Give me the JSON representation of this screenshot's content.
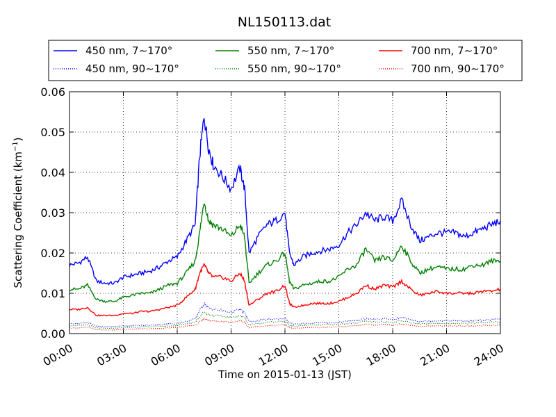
{
  "chart_data": {
    "type": "line",
    "title": "NL150113.dat",
    "xlabel": "Time on 2015-01-13 (JST)",
    "ylabel_main": "Scattering Coefficient (km",
    "ylabel_sup": "−1",
    "ylabel_close": ")",
    "xlim": [
      "00:00",
      "24:00"
    ],
    "ylim": [
      0,
      0.06
    ],
    "x_ticks": [
      "00:00",
      "03:00",
      "06:00",
      "09:00",
      "12:00",
      "15:00",
      "18:00",
      "21:00",
      "24:00"
    ],
    "y_ticks": [
      "0.00",
      "0.01",
      "0.02",
      "0.03",
      "0.04",
      "0.05",
      "0.06"
    ],
    "grid": true,
    "legend_position": "above-plot",
    "x_hours": [
      0,
      0.5,
      1,
      1.5,
      2,
      2.5,
      3,
      3.5,
      4,
      4.5,
      5,
      5.5,
      6,
      6.5,
      7,
      7.25,
      7.5,
      7.75,
      8,
      8.5,
      9,
      9.5,
      9.75,
      10,
      10.5,
      11,
      11.5,
      12,
      12.25,
      12.5,
      13,
      13.5,
      14,
      14.5,
      15,
      15.5,
      16,
      16.5,
      17,
      17.5,
      18,
      18.5,
      19,
      19.5,
      20,
      20.5,
      21,
      21.5,
      22,
      22.5,
      23,
      23.5,
      24
    ],
    "series": [
      {
        "name": "450 nm, 7∼170°",
        "color": "#0000ff",
        "style": "solid",
        "values": [
          0.017,
          0.0175,
          0.019,
          0.013,
          0.0125,
          0.0125,
          0.014,
          0.0145,
          0.015,
          0.0155,
          0.0165,
          0.018,
          0.019,
          0.023,
          0.027,
          0.044,
          0.054,
          0.046,
          0.042,
          0.039,
          0.036,
          0.041,
          0.036,
          0.02,
          0.024,
          0.027,
          0.028,
          0.03,
          0.02,
          0.017,
          0.019,
          0.02,
          0.0205,
          0.021,
          0.022,
          0.025,
          0.027,
          0.03,
          0.028,
          0.029,
          0.028,
          0.033,
          0.027,
          0.023,
          0.024,
          0.025,
          0.025,
          0.025,
          0.024,
          0.025,
          0.026,
          0.027,
          0.028
        ]
      },
      {
        "name": "550 nm, 7∼170°",
        "color": "#008000",
        "style": "solid",
        "values": [
          0.011,
          0.011,
          0.012,
          0.0085,
          0.008,
          0.008,
          0.009,
          0.0095,
          0.01,
          0.01,
          0.011,
          0.012,
          0.0125,
          0.015,
          0.018,
          0.025,
          0.033,
          0.028,
          0.027,
          0.026,
          0.024,
          0.027,
          0.024,
          0.0125,
          0.015,
          0.017,
          0.018,
          0.02,
          0.013,
          0.011,
          0.012,
          0.0125,
          0.013,
          0.013,
          0.014,
          0.016,
          0.017,
          0.021,
          0.018,
          0.019,
          0.018,
          0.022,
          0.018,
          0.015,
          0.016,
          0.0165,
          0.016,
          0.016,
          0.016,
          0.017,
          0.017,
          0.018,
          0.018
        ]
      },
      {
        "name": "700 nm, 7∼170°",
        "color": "#ff0000",
        "style": "solid",
        "values": [
          0.006,
          0.006,
          0.0065,
          0.0045,
          0.0045,
          0.0045,
          0.005,
          0.005,
          0.0055,
          0.0055,
          0.006,
          0.0065,
          0.007,
          0.009,
          0.011,
          0.015,
          0.017,
          0.015,
          0.014,
          0.014,
          0.013,
          0.015,
          0.013,
          0.007,
          0.0085,
          0.01,
          0.0105,
          0.012,
          0.0075,
          0.0065,
          0.007,
          0.0075,
          0.0075,
          0.0075,
          0.008,
          0.009,
          0.01,
          0.012,
          0.011,
          0.012,
          0.0115,
          0.013,
          0.011,
          0.0095,
          0.01,
          0.0105,
          0.01,
          0.01,
          0.01,
          0.01,
          0.0105,
          0.0105,
          0.011
        ]
      },
      {
        "name": "450 nm, 90∼170°",
        "color": "#0000ff",
        "style": "dotted",
        "values": [
          0.0025,
          0.0025,
          0.0028,
          0.0018,
          0.0017,
          0.0017,
          0.0019,
          0.002,
          0.002,
          0.0021,
          0.0022,
          0.0024,
          0.0025,
          0.003,
          0.0036,
          0.0058,
          0.0075,
          0.0065,
          0.006,
          0.0057,
          0.0053,
          0.006,
          0.0052,
          0.003,
          0.0032,
          0.0035,
          0.0036,
          0.0038,
          0.0027,
          0.0023,
          0.0025,
          0.0026,
          0.0027,
          0.0027,
          0.0028,
          0.0031,
          0.0033,
          0.0037,
          0.0035,
          0.0036,
          0.0035,
          0.004,
          0.0035,
          0.003,
          0.0031,
          0.0032,
          0.0032,
          0.0032,
          0.0031,
          0.0032,
          0.0033,
          0.0034,
          0.0036
        ]
      },
      {
        "name": "550 nm, 90∼170°",
        "color": "#008000",
        "style": "dotted",
        "values": [
          0.002,
          0.002,
          0.0022,
          0.0014,
          0.0013,
          0.0013,
          0.0015,
          0.0016,
          0.0016,
          0.0017,
          0.0018,
          0.0019,
          0.002,
          0.0024,
          0.0029,
          0.0042,
          0.0055,
          0.0047,
          0.0045,
          0.0043,
          0.004,
          0.0045,
          0.004,
          0.0022,
          0.0025,
          0.0028,
          0.0029,
          0.003,
          0.0021,
          0.0018,
          0.002,
          0.0021,
          0.0021,
          0.0022,
          0.0023,
          0.0025,
          0.0027,
          0.0031,
          0.0028,
          0.0029,
          0.0028,
          0.0032,
          0.0028,
          0.0024,
          0.0025,
          0.0026,
          0.0025,
          0.0025,
          0.0025,
          0.0026,
          0.0027,
          0.0028,
          0.0029
        ]
      },
      {
        "name": "700 nm, 90∼170°",
        "color": "#ff0000",
        "style": "dotted",
        "values": [
          0.0014,
          0.0014,
          0.0016,
          0.001,
          0.0009,
          0.0009,
          0.0011,
          0.0011,
          0.0012,
          0.0012,
          0.0013,
          0.0014,
          0.0015,
          0.0018,
          0.0021,
          0.003,
          0.0038,
          0.0033,
          0.0031,
          0.003,
          0.0028,
          0.0032,
          0.0028,
          0.0015,
          0.0018,
          0.002,
          0.0021,
          0.0023,
          0.0015,
          0.0013,
          0.0014,
          0.0015,
          0.0015,
          0.0016,
          0.0017,
          0.0018,
          0.002,
          0.0023,
          0.0021,
          0.0022,
          0.0021,
          0.0024,
          0.0021,
          0.0018,
          0.0019,
          0.0019,
          0.0019,
          0.0019,
          0.0019,
          0.0019,
          0.002,
          0.002,
          0.0021
        ]
      }
    ],
    "legend_order": [
      0,
      1,
      2,
      3,
      4,
      5
    ]
  }
}
